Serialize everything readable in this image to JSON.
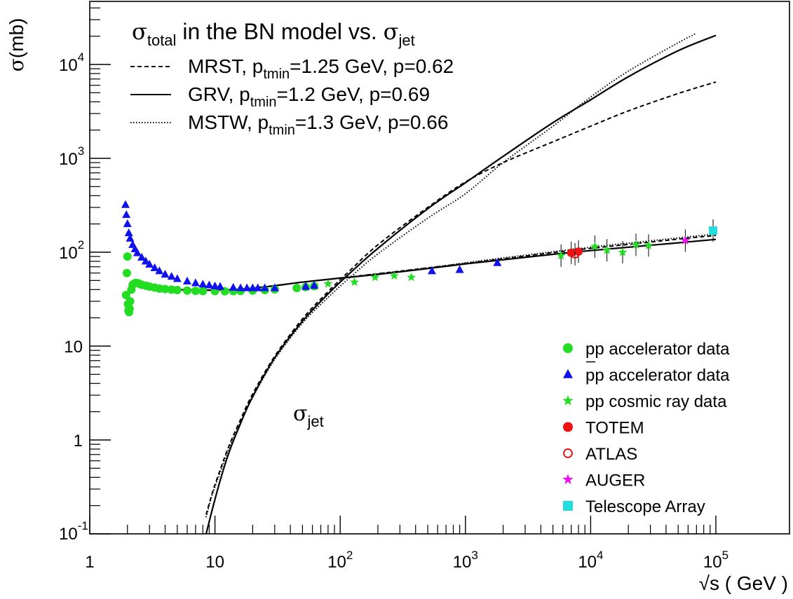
{
  "chart_data": {
    "type": "line",
    "title": "σ_total in the BN model vs. σ_jet",
    "title_parts": {
      "sigma": "σ",
      "sub": "total",
      "rest": " in the BN model vs. ",
      "sigma2": "σ",
      "sub2": "jet"
    },
    "ylabel_parts": {
      "sigma": "σ",
      "rest": "(mb)"
    },
    "xlabel": "√s ( GeV )",
    "x_scale": "log",
    "y_scale": "log",
    "xlim": [
      1,
      140000
    ],
    "ylim": [
      0.1,
      50000
    ],
    "grid": false,
    "x_ticks": [
      {
        "v": 1,
        "base": "1",
        "exp": ""
      },
      {
        "v": 10,
        "base": "10",
        "exp": ""
      },
      {
        "v": 100,
        "base": "10",
        "exp": "2"
      },
      {
        "v": 1000,
        "base": "10",
        "exp": "3"
      },
      {
        "v": 10000,
        "base": "10",
        "exp": "4"
      },
      {
        "v": 100000,
        "base": "10",
        "exp": "5"
      }
    ],
    "y_ticks": [
      {
        "v": 0.1,
        "base": "10",
        "exp": "-1"
      },
      {
        "v": 1,
        "base": "1",
        "exp": ""
      },
      {
        "v": 10,
        "base": "10",
        "exp": ""
      },
      {
        "v": 100,
        "base": "10",
        "exp": "2"
      },
      {
        "v": 1000,
        "base": "10",
        "exp": "3"
      },
      {
        "v": 10000,
        "base": "10",
        "exp": "4"
      }
    ],
    "curve_legend": [
      {
        "style": "dashed",
        "name": "MRST",
        "pt_label": "p",
        "pt_sub": "tmin",
        "pt_rest": "=1.25 GeV, p=0.62"
      },
      {
        "style": "solid",
        "name": "GRV",
        "pt_label": "p",
        "pt_sub": "tmin",
        "pt_rest": "=1.2 GeV, p=0.69"
      },
      {
        "style": "dotted",
        "name": "MSTW",
        "pt_label": "p",
        "pt_sub": "tmin",
        "pt_rest": "=1.3 GeV, p=0.66"
      }
    ],
    "sigma_jet_label": {
      "sigma": "σ",
      "sub": "jet"
    },
    "data_legend": [
      {
        "marker": "circle",
        "color": "#22dd22",
        "label": "pp accelerator data",
        "overbar": false
      },
      {
        "marker": "triangle",
        "color": "#1111ee",
        "label": "pp accelerator data",
        "overbar": true
      },
      {
        "marker": "star",
        "color": "#22dd22",
        "label": "pp cosmic ray data",
        "overbar": false
      },
      {
        "marker": "circle",
        "color": "#ee1111",
        "label": "TOTEM",
        "overbar": false
      },
      {
        "marker": "open-circle",
        "color": "#ee1111",
        "label": "ATLAS",
        "overbar": false
      },
      {
        "marker": "star",
        "color": "#ee11ee",
        "label": "AUGER",
        "overbar": false
      },
      {
        "marker": "square",
        "color": "#22dddd",
        "label": "Telescope Array",
        "overbar": false
      }
    ],
    "series": [
      {
        "name": "MRST σ_total",
        "style": "dashed",
        "x": [
          5,
          7,
          10,
          14,
          20,
          30,
          50,
          100,
          200,
          500,
          1000,
          2000,
          5000,
          10000,
          20000,
          50000,
          100000
        ],
        "y": [
          40,
          39.5,
          39.5,
          40,
          41.5,
          44,
          48,
          53,
          59,
          68,
          76,
          85,
          99,
          110,
          121,
          138,
          151
        ]
      },
      {
        "name": "GRV σ_total",
        "style": "solid",
        "x": [
          5,
          7,
          10,
          14,
          20,
          30,
          50,
          100,
          200,
          500,
          1000,
          2000,
          5000,
          10000,
          20000,
          50000,
          100000
        ],
        "y": [
          40,
          39.5,
          39.5,
          40,
          41.5,
          44,
          48,
          53,
          58,
          67,
          75,
          83,
          95,
          104,
          113,
          126,
          137
        ]
      },
      {
        "name": "MSTW σ_total",
        "style": "dotted",
        "x": [
          5,
          7,
          10,
          14,
          20,
          30,
          50,
          100,
          200,
          500,
          1000,
          2000,
          5000,
          10000,
          20000,
          50000,
          100000
        ],
        "y": [
          40,
          39.5,
          39.5,
          40,
          41.5,
          44,
          48,
          53,
          59,
          68,
          77,
          87,
          101,
          113,
          125,
          142,
          156
        ]
      },
      {
        "name": "GRV σ_jet",
        "style": "solid",
        "x": [
          8.5,
          9.5,
          11,
          13,
          16,
          20,
          30,
          50,
          80,
          120,
          200,
          500,
          1000,
          2000,
          5000,
          10000,
          20000,
          50000,
          100000
        ],
        "y": [
          0.1,
          0.18,
          0.37,
          0.75,
          1.5,
          2.9,
          7.5,
          18.4,
          36,
          60,
          110,
          290,
          550,
          1050,
          2400,
          4200,
          7400,
          14000,
          20400
        ]
      },
      {
        "name": "MRST σ_jet",
        "style": "dashed",
        "x": [
          8.5,
          9.5,
          11,
          13,
          16,
          20,
          30,
          50,
          80,
          120,
          200,
          500,
          1000,
          2000,
          5000,
          10000,
          20000,
          50000,
          100000
        ],
        "y": [
          0.16,
          0.27,
          0.48,
          0.88,
          1.65,
          3.1,
          7.8,
          19.5,
          38,
          64,
          120,
          300,
          560,
          900,
          1500,
          2200,
          3200,
          4900,
          6500
        ]
      },
      {
        "name": "MSTW σ_jet",
        "style": "dotted",
        "x": [
          8.5,
          9.5,
          11,
          13,
          16,
          20,
          30,
          50,
          80,
          120,
          200,
          500,
          1000,
          2000,
          5000,
          10000,
          20000,
          50000,
          70000
        ],
        "y": [
          0.15,
          0.26,
          0.45,
          0.83,
          1.55,
          2.85,
          7.2,
          17.6,
          33,
          54,
          96,
          230,
          420,
          900,
          2200,
          4500,
          8500,
          17000,
          21500
        ]
      },
      {
        "name": "pp accelerator data",
        "style": "markers",
        "marker": "circle",
        "color": "#22dd22",
        "x": [
          1.95,
          1.98,
          2.0,
          2.02,
          2.04,
          2.06,
          2.08,
          2.1,
          2.15,
          2.2,
          2.3,
          2.4,
          2.5,
          2.6,
          2.8,
          3.0,
          3.3,
          3.6,
          4.0,
          4.5,
          5.0,
          6.0,
          7.0,
          8.0,
          10,
          12,
          14,
          16,
          20,
          25,
          30,
          45,
          53,
          62
        ],
        "y": [
          35,
          60,
          90,
          28,
          24,
          23,
          25,
          30,
          40,
          45,
          47,
          47,
          46,
          45,
          44,
          43,
          42,
          41,
          40.5,
          40,
          39.5,
          39,
          38.7,
          38.5,
          38.5,
          38.4,
          38.5,
          38.7,
          39,
          39.5,
          40.2,
          41.5,
          42.5,
          43.5
        ]
      },
      {
        "name": "pbar-p accelerator data",
        "style": "markers",
        "marker": "triangle",
        "color": "#1111ee",
        "x": [
          1.93,
          1.96,
          2.0,
          2.05,
          2.1,
          2.2,
          2.3,
          2.4,
          2.6,
          2.8,
          3.0,
          3.3,
          3.6,
          4.0,
          4.5,
          5.0,
          6.0,
          7.0,
          8.0,
          9.0,
          10,
          11,
          14,
          16,
          18,
          20,
          22,
          25,
          30,
          53,
          62,
          540,
          900,
          1800
        ],
        "y": [
          320,
          250,
          200,
          160,
          140,
          120,
          108,
          98,
          88,
          80,
          74,
          68,
          63,
          58,
          55,
          52,
          49,
          47,
          45.5,
          44.5,
          43.5,
          43,
          42,
          41.5,
          41.5,
          41.5,
          41.5,
          41.5,
          41.5,
          43,
          44,
          63,
          65,
          77
        ]
      },
      {
        "name": "pp cosmic ray data",
        "style": "markers",
        "marker": "star",
        "color": "#22dd22",
        "x": [
          80,
          130,
          190,
          270,
          370,
          5800,
          10800,
          13500,
          18000,
          23000,
          29000
        ],
        "y": [
          46,
          48,
          54,
          56,
          54,
          92,
          115,
          105,
          100,
          120,
          118
        ]
      },
      {
        "name": "TOTEM",
        "style": "markers",
        "marker": "circle",
        "color": "#ee1111",
        "x": [
          7000,
          8000
        ],
        "y": [
          98.5,
          101.5
        ]
      },
      {
        "name": "ATLAS",
        "style": "markers",
        "marker": "open-circle",
        "color": "#ee1111",
        "x": [
          7500
        ],
        "y": [
          95
        ]
      },
      {
        "name": "AUGER",
        "style": "markers",
        "marker": "star",
        "color": "#ee11ee",
        "x": [
          57000
        ],
        "y": [
          133
        ]
      },
      {
        "name": "Telescope Array",
        "style": "markers",
        "marker": "square",
        "color": "#22dddd",
        "x": [
          95000
        ],
        "y": [
          170
        ]
      }
    ]
  }
}
